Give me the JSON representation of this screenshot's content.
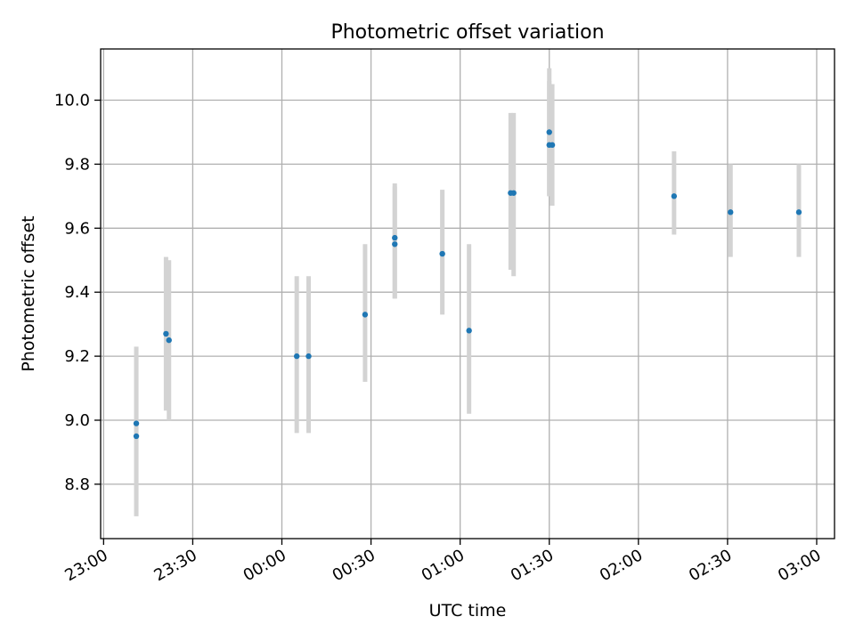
{
  "chart_data": {
    "type": "scatter",
    "title": "Photometric offset variation",
    "xlabel": "UTC time",
    "ylabel": "Photometric offset",
    "x_ticks": [
      "23:00",
      "23:30",
      "00:00",
      "00:30",
      "01:00",
      "01:30",
      "02:00",
      "02:30",
      "03:00"
    ],
    "y_ticks": [
      "8.8",
      "9.0",
      "9.2",
      "9.4",
      "9.6",
      "9.8",
      "10.0"
    ],
    "xlim_minutes_after_2300": [
      -1,
      246
    ],
    "ylim": [
      8.63,
      10.16
    ],
    "grid": true,
    "legend": "none",
    "point_color": "#1f77b4",
    "errorbar_color": "#d3d3d3",
    "points": [
      {
        "time": "23:11",
        "y": 8.95,
        "yerr_low": 8.7,
        "yerr_high": 9.2
      },
      {
        "time": "23:11",
        "y": 8.99,
        "yerr_low": 8.75,
        "yerr_high": 9.23
      },
      {
        "time": "23:21",
        "y": 9.27,
        "yerr_low": 9.03,
        "yerr_high": 9.51
      },
      {
        "time": "23:22",
        "y": 9.25,
        "yerr_low": 9.0,
        "yerr_high": 9.5
      },
      {
        "time": "00:05",
        "y": 9.2,
        "yerr_low": 8.96,
        "yerr_high": 9.45
      },
      {
        "time": "00:09",
        "y": 9.2,
        "yerr_low": 8.96,
        "yerr_high": 9.45
      },
      {
        "time": "00:28",
        "y": 9.33,
        "yerr_low": 9.12,
        "yerr_high": 9.55
      },
      {
        "time": "00:38",
        "y": 9.57,
        "yerr_low": 9.38,
        "yerr_high": 9.74
      },
      {
        "time": "00:38",
        "y": 9.55,
        "yerr_low": 9.38,
        "yerr_high": 9.73
      },
      {
        "time": "00:54",
        "y": 9.52,
        "yerr_low": 9.33,
        "yerr_high": 9.72
      },
      {
        "time": "01:03",
        "y": 9.28,
        "yerr_low": 9.02,
        "yerr_high": 9.55
      },
      {
        "time": "01:17",
        "y": 9.71,
        "yerr_low": 9.47,
        "yerr_high": 9.96
      },
      {
        "time": "01:18",
        "y": 9.71,
        "yerr_low": 9.45,
        "yerr_high": 9.96
      },
      {
        "time": "01:30",
        "y": 9.9,
        "yerr_low": 9.7,
        "yerr_high": 10.1
      },
      {
        "time": "01:30",
        "y": 9.86,
        "yerr_low": 9.7,
        "yerr_high": 10.06
      },
      {
        "time": "01:31",
        "y": 9.86,
        "yerr_low": 9.67,
        "yerr_high": 10.05
      },
      {
        "time": "02:12",
        "y": 9.7,
        "yerr_low": 9.58,
        "yerr_high": 9.84
      },
      {
        "time": "02:31",
        "y": 9.65,
        "yerr_low": 9.51,
        "yerr_high": 9.8
      },
      {
        "time": "02:54",
        "y": 9.65,
        "yerr_low": 9.51,
        "yerr_high": 9.8
      }
    ]
  }
}
